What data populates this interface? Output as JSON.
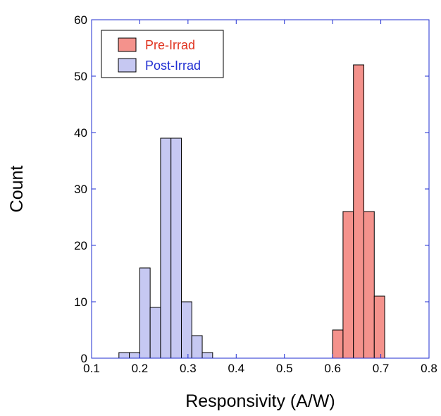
{
  "chart_data": {
    "type": "bar",
    "title": "",
    "xlabel": "Responsivity (A/W)",
    "ylabel": "Count",
    "xlim": [
      0.1,
      0.8
    ],
    "ylim": [
      0,
      60
    ],
    "xticks": [
      "0.1",
      "0.2",
      "0.3",
      "0.4",
      "0.5",
      "0.6",
      "0.7",
      "0.8"
    ],
    "yticks": [
      "0",
      "10",
      "20",
      "30",
      "40",
      "50",
      "60"
    ],
    "grid": false,
    "legend_position": "top-left",
    "bin_width": 0.0216,
    "series": [
      {
        "name": "Pre-Irrad",
        "fill": "#f4928c",
        "text_color": "#e0321e",
        "bins": [
          {
            "x": 0.6,
            "count": 5
          },
          {
            "x": 0.6216,
            "count": 26
          },
          {
            "x": 0.6432,
            "count": 52
          },
          {
            "x": 0.6648,
            "count": 26
          },
          {
            "x": 0.6864,
            "count": 11
          }
        ]
      },
      {
        "name": "Post-Irrad",
        "fill": "#c6c8f2",
        "text_color": "#1f2ed2",
        "bins": [
          {
            "x": 0.1567,
            "count": 1
          },
          {
            "x": 0.1783,
            "count": 1
          },
          {
            "x": 0.1999,
            "count": 16
          },
          {
            "x": 0.2215,
            "count": 9
          },
          {
            "x": 0.2431,
            "count": 39
          },
          {
            "x": 0.2647,
            "count": 39
          },
          {
            "x": 0.2863,
            "count": 10
          },
          {
            "x": 0.3079,
            "count": 4
          },
          {
            "x": 0.3295,
            "count": 1
          }
        ]
      }
    ],
    "colors": {
      "axis_frame": "#1f2ed2",
      "bar_edge": "#000000"
    }
  }
}
